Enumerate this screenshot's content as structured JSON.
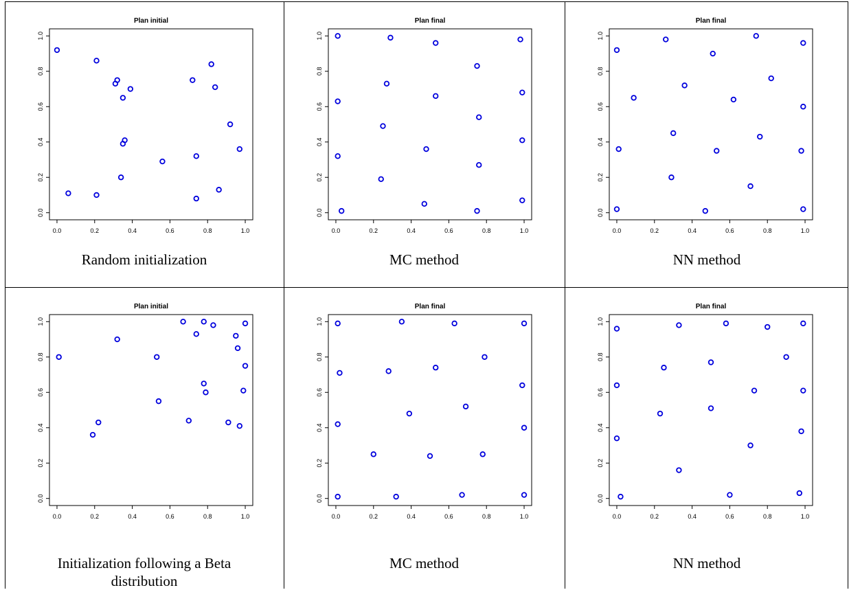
{
  "panels": [
    {
      "caption": "Random initialization",
      "chart_data": {
        "type": "scatter",
        "title": "Plan initial",
        "xlim": [
          0,
          1
        ],
        "ylim": [
          0,
          1
        ],
        "xticks": [
          "0.0",
          "0.2",
          "0.4",
          "0.6",
          "0.8",
          "1.0"
        ],
        "yticks": [
          "0.0",
          "0.2",
          "0.4",
          "0.6",
          "0.8",
          "1.0"
        ],
        "marker_color": "#0000dd",
        "points": [
          [
            0.0,
            0.92
          ],
          [
            0.21,
            0.86
          ],
          [
            0.32,
            0.75
          ],
          [
            0.31,
            0.73
          ],
          [
            0.39,
            0.7
          ],
          [
            0.35,
            0.65
          ],
          [
            0.36,
            0.41
          ],
          [
            0.35,
            0.39
          ],
          [
            0.34,
            0.2
          ],
          [
            0.06,
            0.11
          ],
          [
            0.21,
            0.1
          ],
          [
            0.56,
            0.29
          ],
          [
            0.72,
            0.75
          ],
          [
            0.82,
            0.84
          ],
          [
            0.84,
            0.71
          ],
          [
            0.92,
            0.5
          ],
          [
            0.97,
            0.36
          ],
          [
            0.74,
            0.32
          ],
          [
            0.74,
            0.08
          ],
          [
            0.86,
            0.13
          ]
        ]
      }
    },
    {
      "caption": "MC method",
      "chart_data": {
        "type": "scatter",
        "title": "Plan final",
        "xlim": [
          0,
          1
        ],
        "ylim": [
          0,
          1
        ],
        "xticks": [
          "0.0",
          "0.2",
          "0.4",
          "0.6",
          "0.8",
          "1.0"
        ],
        "yticks": [
          "0.0",
          "0.2",
          "0.4",
          "0.6",
          "0.8",
          "1.0"
        ],
        "marker_color": "#0000dd",
        "points": [
          [
            0.01,
            1.0
          ],
          [
            0.29,
            0.99
          ],
          [
            0.53,
            0.96
          ],
          [
            0.98,
            0.98
          ],
          [
            0.75,
            0.83
          ],
          [
            0.27,
            0.73
          ],
          [
            0.53,
            0.66
          ],
          [
            0.99,
            0.68
          ],
          [
            0.01,
            0.63
          ],
          [
            0.76,
            0.54
          ],
          [
            0.25,
            0.49
          ],
          [
            0.48,
            0.36
          ],
          [
            0.99,
            0.41
          ],
          [
            0.01,
            0.32
          ],
          [
            0.76,
            0.27
          ],
          [
            0.24,
            0.19
          ],
          [
            0.47,
            0.05
          ],
          [
            0.03,
            0.01
          ],
          [
            0.75,
            0.01
          ],
          [
            0.99,
            0.07
          ]
        ]
      }
    },
    {
      "caption": "NN method",
      "chart_data": {
        "type": "scatter",
        "title": "Plan final",
        "xlim": [
          0,
          1
        ],
        "ylim": [
          0,
          1
        ],
        "xticks": [
          "0.0",
          "0.2",
          "0.4",
          "0.6",
          "0.8",
          "1.0"
        ],
        "yticks": [
          "0.0",
          "0.2",
          "0.4",
          "0.6",
          "0.8",
          "1.0"
        ],
        "marker_color": "#0000dd",
        "points": [
          [
            0.0,
            0.92
          ],
          [
            0.26,
            0.98
          ],
          [
            0.74,
            1.0
          ],
          [
            0.99,
            0.96
          ],
          [
            0.51,
            0.9
          ],
          [
            0.82,
            0.76
          ],
          [
            0.36,
            0.72
          ],
          [
            0.09,
            0.65
          ],
          [
            0.62,
            0.64
          ],
          [
            0.99,
            0.6
          ],
          [
            0.3,
            0.45
          ],
          [
            0.76,
            0.43
          ],
          [
            0.01,
            0.36
          ],
          [
            0.53,
            0.35
          ],
          [
            0.98,
            0.35
          ],
          [
            0.29,
            0.2
          ],
          [
            0.71,
            0.15
          ],
          [
            0.0,
            0.02
          ],
          [
            0.47,
            0.01
          ],
          [
            0.99,
            0.02
          ]
        ]
      }
    },
    {
      "caption": "Initialization following a Beta distribution",
      "chart_data": {
        "type": "scatter",
        "title": "Plan initial",
        "xlim": [
          0,
          1
        ],
        "ylim": [
          0,
          1
        ],
        "xticks": [
          "0.0",
          "0.2",
          "0.4",
          "0.6",
          "0.8",
          "1.0"
        ],
        "yticks": [
          "0.0",
          "0.2",
          "0.4",
          "0.6",
          "0.8",
          "1.0"
        ],
        "marker_color": "#0000dd",
        "points": [
          [
            0.01,
            0.8
          ],
          [
            0.32,
            0.9
          ],
          [
            0.19,
            0.36
          ],
          [
            0.22,
            0.43
          ],
          [
            0.53,
            0.8
          ],
          [
            0.54,
            0.55
          ],
          [
            0.67,
            1.0
          ],
          [
            0.74,
            0.93
          ],
          [
            0.78,
            1.0
          ],
          [
            0.83,
            0.98
          ],
          [
            0.95,
            0.92
          ],
          [
            0.96,
            0.85
          ],
          [
            1.0,
            0.99
          ],
          [
            1.0,
            0.75
          ],
          [
            0.78,
            0.65
          ],
          [
            0.79,
            0.6
          ],
          [
            0.99,
            0.61
          ],
          [
            0.7,
            0.44
          ],
          [
            0.91,
            0.43
          ],
          [
            0.97,
            0.41
          ]
        ]
      }
    },
    {
      "caption": "MC method",
      "chart_data": {
        "type": "scatter",
        "title": "Plan final",
        "xlim": [
          0,
          1
        ],
        "ylim": [
          0,
          1
        ],
        "xticks": [
          "0.0",
          "0.2",
          "0.4",
          "0.6",
          "0.8",
          "1.0"
        ],
        "yticks": [
          "0.0",
          "0.2",
          "0.4",
          "0.6",
          "0.8",
          "1.0"
        ],
        "marker_color": "#0000dd",
        "points": [
          [
            0.01,
            0.99
          ],
          [
            0.35,
            1.0
          ],
          [
            0.63,
            0.99
          ],
          [
            1.0,
            0.99
          ],
          [
            0.02,
            0.71
          ],
          [
            0.28,
            0.72
          ],
          [
            0.53,
            0.74
          ],
          [
            0.79,
            0.8
          ],
          [
            0.99,
            0.64
          ],
          [
            0.39,
            0.48
          ],
          [
            0.69,
            0.52
          ],
          [
            0.01,
            0.42
          ],
          [
            1.0,
            0.4
          ],
          [
            0.2,
            0.25
          ],
          [
            0.5,
            0.24
          ],
          [
            0.78,
            0.25
          ],
          [
            0.01,
            0.01
          ],
          [
            0.32,
            0.01
          ],
          [
            0.67,
            0.02
          ],
          [
            1.0,
            0.02
          ]
        ]
      }
    },
    {
      "caption": "NN method",
      "chart_data": {
        "type": "scatter",
        "title": "Plan final",
        "xlim": [
          0,
          1
        ],
        "ylim": [
          0,
          1
        ],
        "xticks": [
          "0.0",
          "0.2",
          "0.4",
          "0.6",
          "0.8",
          "1.0"
        ],
        "yticks": [
          "0.0",
          "0.2",
          "0.4",
          "0.6",
          "0.8",
          "1.0"
        ],
        "marker_color": "#0000dd",
        "points": [
          [
            0.0,
            0.96
          ],
          [
            0.33,
            0.98
          ],
          [
            0.58,
            0.99
          ],
          [
            0.8,
            0.97
          ],
          [
            0.99,
            0.99
          ],
          [
            0.25,
            0.74
          ],
          [
            0.5,
            0.77
          ],
          [
            0.9,
            0.8
          ],
          [
            0.0,
            0.64
          ],
          [
            0.73,
            0.61
          ],
          [
            0.99,
            0.61
          ],
          [
            0.23,
            0.48
          ],
          [
            0.5,
            0.51
          ],
          [
            0.0,
            0.34
          ],
          [
            0.71,
            0.3
          ],
          [
            0.98,
            0.38
          ],
          [
            0.33,
            0.16
          ],
          [
            0.02,
            0.01
          ],
          [
            0.6,
            0.02
          ],
          [
            0.97,
            0.03
          ]
        ]
      }
    }
  ]
}
